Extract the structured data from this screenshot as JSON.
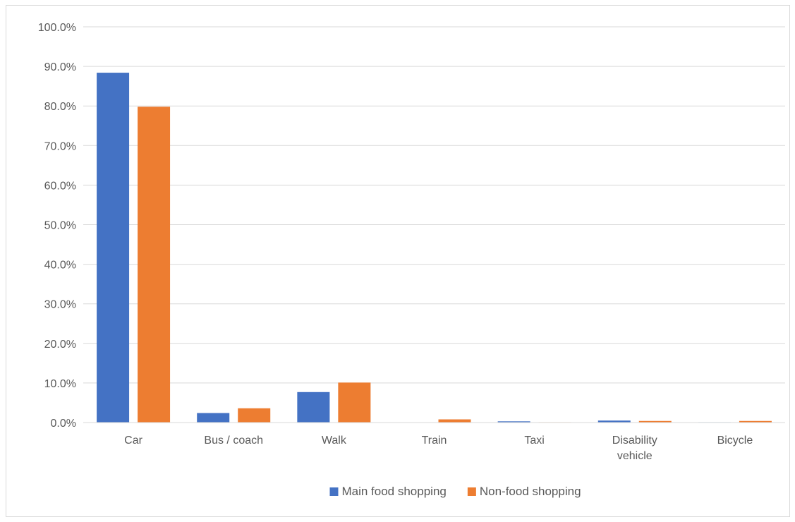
{
  "chart_data": {
    "type": "bar",
    "categories": [
      [
        "Car"
      ],
      [
        "Bus / coach"
      ],
      [
        "Walk"
      ],
      [
        "Train"
      ],
      [
        "Taxi"
      ],
      [
        "Disability",
        "vehicle"
      ],
      [
        "Bicycle"
      ]
    ],
    "series": [
      {
        "name": "Main food shopping",
        "color": "#4472c4",
        "values": [
          88.4,
          2.4,
          7.7,
          0.0,
          0.3,
          0.5,
          0.1
        ]
      },
      {
        "name": "Non-food shopping",
        "color": "#ed7d31",
        "values": [
          79.8,
          3.6,
          10.1,
          0.8,
          0.1,
          0.4,
          0.4
        ]
      }
    ],
    "y_ticks": [
      "0.0%",
      "10.0%",
      "20.0%",
      "30.0%",
      "40.0%",
      "50.0%",
      "60.0%",
      "70.0%",
      "80.0%",
      "90.0%",
      "100.0%"
    ],
    "ylim": [
      0,
      100
    ],
    "ytick_step": 10,
    "grid": true,
    "legend_position": "bottom",
    "title": "",
    "xlabel": "",
    "ylabel": ""
  }
}
